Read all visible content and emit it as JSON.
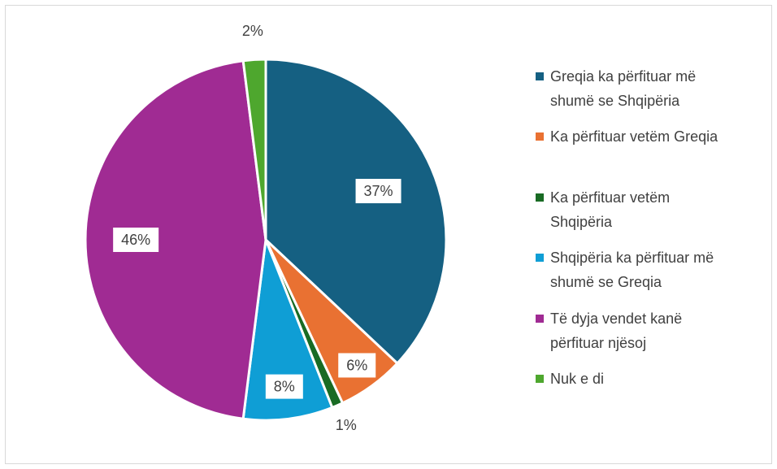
{
  "chart_data": {
    "type": "pie",
    "title": "",
    "categories": [
      "Greqia ka përfituar më shumë se Shqipëria",
      "Ka përfituar vetëm Greqia",
      "Ka përfituar vetëm Shqipëria",
      "Shqipëria ka përfituar më shumë se Greqia",
      "Të dyja vendet kanë përfituar njësoj",
      "Nuk e di"
    ],
    "values": [
      37,
      6,
      1,
      8,
      46,
      2
    ],
    "labels": [
      "37%",
      "6%",
      "1%",
      "8%",
      "46%",
      "2%"
    ],
    "colors": [
      "#156082",
      "#E97132",
      "#196B24",
      "#0F9ED5",
      "#A02B93",
      "#4EA72E"
    ],
    "legend_position": "right",
    "legend": [
      {
        "color": "#156082",
        "lines": [
          "Greqia ka përfituar më",
          "shumë se Shqipëria"
        ]
      },
      {
        "color": "#E97132",
        "lines": [
          "Ka përfituar vetëm Greqia"
        ]
      },
      {
        "color": "#196B24",
        "lines": [
          "Ka përfituar vetëm",
          "Shqipëria"
        ]
      },
      {
        "color": "#0F9ED5",
        "lines": [
          "Shqipëria ka përfituar më",
          "shumë se Greqia"
        ]
      },
      {
        "color": "#A02B93",
        "lines": [
          "Të dyja vendet kanë",
          "përfituar njësoj"
        ]
      },
      {
        "color": "#4EA72E",
        "lines": [
          "Nuk e di"
        ]
      }
    ]
  }
}
